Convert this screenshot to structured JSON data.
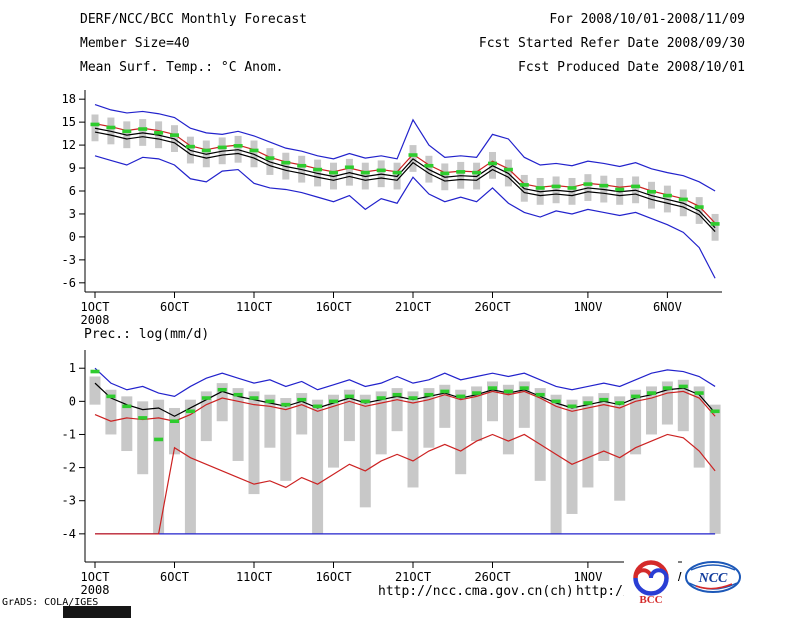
{
  "header": {
    "line1": "DERF/NCC/BCC Monthly Forecast",
    "line2": "Member Size=40",
    "line3": "Mean Surf. Temp.: °C Anom.",
    "right1": "For 2008/10/01-2008/11/09",
    "right2": "Fcst Started Refer Date 2008/09/30",
    "right3": "Fcst Produced Date 2008/10/01"
  },
  "footer": {
    "credit": "GrADS: COLA/IGES",
    "url_primary": "http://ncc.cma.gov.cn(ch)",
    "url_secondary": "http://bcc.c",
    "logo_bcc": "BCC",
    "logo_ncc": "NCC"
  },
  "colors": {
    "line_blue": "#2222cc",
    "line_red": "#cc2222",
    "line_black": "#000000",
    "marker_green": "#2ecc2e",
    "bar_gray": "#c8c8c8",
    "axis": "#000000"
  },
  "chart_data": [
    {
      "type": "line",
      "name": "temp-anomaly-chart",
      "title": "Mean Surf. Temp.: °C Anom.",
      "ylim": [
        -7.2,
        19.2
      ],
      "yticks": [
        18,
        15,
        12,
        9,
        6,
        3,
        0,
        -3,
        -6
      ],
      "xtick_days": [
        0,
        5,
        10,
        15,
        20,
        25,
        31,
        36
      ],
      "xtick_labels": [
        "1OCT",
        "6OCT",
        "11OCT",
        "16OCT",
        "21OCT",
        "26OCT",
        "1NOV",
        "6NOV"
      ],
      "xtick_sublabel": "2008",
      "n_days": 40,
      "grid": false,
      "legend": "none",
      "bars": {
        "name": "ensemble-spread",
        "color": "#c8c8c8",
        "high": [
          16.0,
          15.6,
          15.1,
          15.4,
          15.1,
          14.6,
          13.1,
          12.6,
          13.0,
          13.2,
          12.6,
          11.6,
          11.0,
          10.6,
          10.1,
          9.7,
          10.2,
          9.7,
          10.0,
          9.7,
          12.0,
          10.6,
          9.6,
          9.8,
          9.7,
          11.1,
          10.1,
          8.1,
          7.7,
          7.9,
          7.7,
          8.2,
          8.0,
          7.7,
          7.9,
          7.2,
          6.7,
          6.2,
          5.2,
          3.0
        ],
        "low": [
          12.5,
          12.1,
          11.6,
          11.9,
          11.6,
          11.1,
          9.6,
          9.1,
          9.5,
          9.7,
          9.1,
          8.1,
          7.5,
          7.1,
          6.6,
          6.2,
          6.7,
          6.2,
          6.5,
          6.2,
          8.5,
          7.1,
          6.1,
          6.3,
          6.2,
          7.6,
          6.6,
          4.6,
          4.2,
          4.4,
          4.2,
          4.7,
          4.5,
          4.2,
          4.4,
          3.7,
          3.2,
          2.7,
          1.7,
          -0.5
        ]
      },
      "series": [
        {
          "name": "ensemble-max",
          "color": "#2222cc",
          "values": [
            17.3,
            16.6,
            16.2,
            16.4,
            16.1,
            15.6,
            14.2,
            13.6,
            13.4,
            13.8,
            13.2,
            12.4,
            11.6,
            11.2,
            10.6,
            10.2,
            10.9,
            10.3,
            10.6,
            10.2,
            15.3,
            12.0,
            10.4,
            10.6,
            10.4,
            13.4,
            12.8,
            10.4,
            9.4,
            9.6,
            9.3,
            9.9,
            9.6,
            9.2,
            9.7,
            8.9,
            8.4,
            8.0,
            7.2,
            6.0
          ]
        },
        {
          "name": "ensemble-min",
          "color": "#2222cc",
          "values": [
            10.6,
            10.0,
            9.4,
            10.4,
            10.2,
            9.4,
            7.6,
            7.2,
            8.6,
            8.8,
            7.0,
            6.4,
            6.2,
            5.8,
            5.2,
            4.6,
            5.4,
            3.6,
            5.0,
            4.4,
            7.8,
            5.6,
            4.6,
            5.2,
            4.6,
            6.4,
            4.4,
            3.2,
            2.6,
            3.4,
            3.0,
            3.6,
            3.2,
            2.8,
            3.2,
            2.4,
            1.6,
            0.6,
            -1.4,
            -5.4
          ]
        },
        {
          "name": "control-run",
          "color": "#cc2222",
          "values": [
            14.8,
            14.4,
            13.9,
            14.2,
            13.9,
            13.4,
            11.9,
            11.4,
            11.8,
            12.0,
            11.4,
            10.4,
            9.8,
            9.4,
            8.9,
            8.5,
            9.0,
            8.5,
            8.8,
            8.5,
            10.8,
            9.4,
            8.4,
            8.6,
            8.5,
            9.9,
            8.9,
            6.9,
            6.5,
            6.7,
            6.5,
            7.0,
            6.8,
            6.5,
            6.7,
            6.0,
            5.5,
            5.0,
            4.0,
            1.8
          ]
        },
        {
          "name": "ensemble-mean",
          "color": "#000000",
          "values": [
            14.2,
            13.8,
            13.3,
            13.6,
            13.3,
            12.8,
            11.3,
            10.8,
            11.2,
            11.4,
            10.8,
            9.8,
            9.2,
            8.8,
            8.3,
            7.9,
            8.4,
            7.9,
            8.2,
            7.9,
            10.2,
            8.8,
            7.8,
            8.0,
            7.9,
            9.3,
            8.3,
            6.3,
            5.9,
            6.1,
            5.9,
            6.4,
            6.2,
            5.9,
            6.1,
            5.4,
            4.9,
            4.4,
            3.4,
            1.2
          ]
        },
        {
          "name": "ensemble-mean-2",
          "color": "#000000",
          "values": [
            13.7,
            13.3,
            12.8,
            13.1,
            12.8,
            12.3,
            10.8,
            10.3,
            10.7,
            10.9,
            10.3,
            9.3,
            8.7,
            8.3,
            7.8,
            7.4,
            7.9,
            7.4,
            7.7,
            7.4,
            9.7,
            8.3,
            7.3,
            7.5,
            7.4,
            8.8,
            7.8,
            5.8,
            5.4,
            5.6,
            5.4,
            5.9,
            5.7,
            5.4,
            5.6,
            4.9,
            4.4,
            3.9,
            2.9,
            0.7
          ]
        }
      ],
      "markers": {
        "name": "ensemble-median",
        "color": "#2ecc2e",
        "values": [
          14.7,
          14.3,
          13.8,
          14.1,
          13.6,
          13.3,
          11.8,
          11.3,
          11.7,
          11.9,
          11.3,
          10.3,
          9.7,
          9.3,
          8.8,
          8.4,
          9.1,
          8.4,
          8.7,
          8.4,
          10.7,
          9.3,
          8.3,
          8.5,
          8.4,
          9.6,
          8.8,
          6.8,
          6.4,
          6.6,
          6.4,
          6.9,
          6.7,
          6.2,
          6.6,
          5.9,
          5.4,
          4.9,
          3.9,
          1.7
        ]
      }
    },
    {
      "type": "line",
      "name": "precipitation-chart",
      "title": "Prec.: log(mm/d)",
      "ylim": [
        -4.85,
        1.55
      ],
      "yticks": [
        1,
        0,
        -1,
        -2,
        -3,
        -4
      ],
      "xtick_days": [
        0,
        5,
        10,
        15,
        20,
        25,
        31,
        36
      ],
      "xtick_labels": [
        "1OCT",
        "6OCT",
        "11OCT",
        "16OCT",
        "21OCT",
        "26OCT",
        "1NOV",
        "6NOV"
      ],
      "xtick_sublabel": "2008",
      "n_days": 40,
      "grid": false,
      "legend": "none",
      "bars": {
        "name": "ensemble-spread",
        "color": "#c8c8c8",
        "high": [
          0.75,
          0.35,
          0.15,
          0.0,
          0.05,
          -0.2,
          0.05,
          0.3,
          0.55,
          0.4,
          0.3,
          0.2,
          0.1,
          0.25,
          0.05,
          0.2,
          0.35,
          0.2,
          0.3,
          0.4,
          0.3,
          0.4,
          0.5,
          0.35,
          0.45,
          0.6,
          0.5,
          0.6,
          0.4,
          0.2,
          0.05,
          0.15,
          0.25,
          0.15,
          0.35,
          0.45,
          0.6,
          0.65,
          0.45,
          -0.1
        ],
        "low": [
          -0.1,
          -1.0,
          -1.5,
          -2.2,
          -4.0,
          -1.6,
          -4.0,
          -1.2,
          -0.6,
          -1.8,
          -2.8,
          -1.4,
          -2.4,
          -1.0,
          -4.0,
          -2.0,
          -1.2,
          -3.2,
          -1.6,
          -0.9,
          -2.6,
          -1.4,
          -0.8,
          -2.2,
          -1.2,
          -0.6,
          -1.6,
          -0.8,
          -2.4,
          -4.0,
          -3.4,
          -2.6,
          -1.8,
          -3.0,
          -1.6,
          -1.0,
          -0.7,
          -0.9,
          -2.0,
          -4.0
        ]
      },
      "series": [
        {
          "name": "log-floor",
          "color": "#2222cc",
          "values": [
            -4.0,
            -4.0,
            -4.0,
            -4.0,
            -4.0,
            -4.0,
            -4.0,
            -4.0,
            -4.0,
            -4.0,
            -4.0,
            -4.0,
            -4.0,
            -4.0,
            -4.0,
            -4.0,
            -4.0,
            -4.0,
            -4.0,
            -4.0,
            -4.0,
            -4.0,
            -4.0,
            -4.0,
            -4.0,
            -4.0,
            -4.0,
            -4.0,
            -4.0,
            -4.0,
            -4.0,
            -4.0,
            -4.0,
            -4.0,
            -4.0,
            -4.0,
            -4.0,
            -4.0,
            -4.0,
            -4.0
          ]
        },
        {
          "name": "ensemble-max",
          "color": "#2222cc",
          "values": [
            1.0,
            0.55,
            0.35,
            0.45,
            0.25,
            0.15,
            0.45,
            0.7,
            0.85,
            0.7,
            0.55,
            0.65,
            0.45,
            0.6,
            0.35,
            0.5,
            0.65,
            0.45,
            0.55,
            0.75,
            0.55,
            0.65,
            0.85,
            0.65,
            0.75,
            0.85,
            0.75,
            0.85,
            0.65,
            0.45,
            0.35,
            0.45,
            0.55,
            0.45,
            0.65,
            0.85,
            0.95,
            0.9,
            0.75,
            0.45
          ]
        },
        {
          "name": "member-min",
          "color": "#cc2222",
          "values": [
            -4.0,
            -4.0,
            -4.0,
            -4.0,
            -4.0,
            -1.4,
            -1.7,
            -1.9,
            -2.1,
            -2.3,
            -2.5,
            -2.4,
            -2.6,
            -2.3,
            -2.5,
            -2.2,
            -1.9,
            -2.1,
            -1.8,
            -1.6,
            -1.8,
            -1.5,
            -1.3,
            -1.5,
            -1.2,
            -1.0,
            -1.2,
            -1.0,
            -1.3,
            -1.6,
            -1.9,
            -1.7,
            -1.5,
            -1.7,
            -1.4,
            -1.2,
            -1.0,
            -1.1,
            -1.5,
            -2.1
          ]
        },
        {
          "name": "control-run",
          "color": "#cc2222",
          "values": [
            -0.4,
            -0.6,
            -0.5,
            -0.55,
            -0.5,
            -0.6,
            -0.4,
            -0.1,
            0.1,
            0.0,
            -0.1,
            -0.15,
            -0.25,
            -0.1,
            -0.3,
            -0.15,
            0.0,
            -0.15,
            -0.05,
            0.05,
            -0.05,
            0.05,
            0.2,
            0.05,
            0.15,
            0.3,
            0.2,
            0.3,
            0.1,
            -0.15,
            -0.3,
            -0.2,
            -0.1,
            -0.2,
            0.0,
            0.1,
            0.25,
            0.3,
            0.1,
            -0.45
          ]
        },
        {
          "name": "ensemble-mean",
          "color": "#000000",
          "values": [
            0.55,
            0.1,
            -0.1,
            -0.25,
            -0.2,
            -0.45,
            -0.2,
            0.05,
            0.3,
            0.15,
            0.05,
            -0.05,
            -0.15,
            0.0,
            -0.2,
            -0.05,
            0.1,
            -0.05,
            0.05,
            0.15,
            0.05,
            0.15,
            0.25,
            0.1,
            0.2,
            0.35,
            0.25,
            0.35,
            0.15,
            -0.05,
            -0.2,
            -0.1,
            0.0,
            -0.1,
            0.1,
            0.2,
            0.35,
            0.4,
            0.2,
            -0.35
          ]
        }
      ],
      "markers": {
        "name": "ensemble-median",
        "color": "#2ecc2e",
        "values": [
          0.9,
          0.15,
          -0.15,
          -0.5,
          -1.15,
          -0.6,
          -0.3,
          0.1,
          0.35,
          0.2,
          0.1,
          0.0,
          -0.1,
          0.05,
          -0.15,
          0.0,
          0.15,
          0.0,
          0.1,
          0.2,
          0.1,
          0.2,
          0.3,
          0.15,
          0.25,
          0.4,
          0.3,
          0.4,
          0.2,
          0.0,
          -0.15,
          -0.05,
          0.05,
          -0.05,
          0.15,
          0.25,
          0.4,
          0.45,
          0.25,
          -0.3
        ]
      }
    }
  ]
}
